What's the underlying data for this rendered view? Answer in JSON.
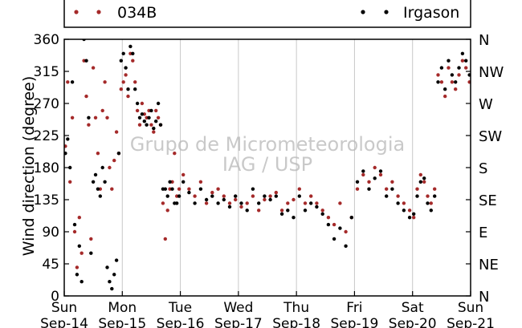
{
  "chart_data": {
    "type": "scatter",
    "ylabel": "Wind direction (degree)",
    "ylim": [
      0,
      360
    ],
    "xlim": [
      0,
      7
    ],
    "y_ticks": [
      0,
      45,
      90,
      135,
      180,
      225,
      270,
      315,
      360
    ],
    "y_tick_labels": [
      "0",
      "45",
      "90",
      "135",
      "180",
      "225",
      "270",
      "315",
      "360"
    ],
    "y2_tick_labels": [
      "N",
      "NE",
      "E",
      "SE",
      "S",
      "SW",
      "W",
      "NW",
      "N"
    ],
    "x_ticks": [
      0,
      1,
      2,
      3,
      4,
      5,
      6,
      7
    ],
    "x_tick_days": [
      "Sun",
      "Mon",
      "Tue",
      "Wed",
      "Thu",
      "Fri",
      "Sat",
      "Sun"
    ],
    "x_tick_dates": [
      "Sep-14",
      "Sep-15",
      "Sep-16",
      "Sep-17",
      "Sep-18",
      "Sep-19",
      "Sep-20",
      "Sep-21"
    ],
    "grid": "vertical",
    "legend_position": "top",
    "watermark": [
      "Grupo de Micrometeorologia",
      "IAG / USP"
    ],
    "series": [
      {
        "name": "034B",
        "color": "#a52a2a",
        "x": [
          0.02,
          0.06,
          0.1,
          0.14,
          0.18,
          0.22,
          0.26,
          0.3,
          0.34,
          0.38,
          0.42,
          0.46,
          0.5,
          0.54,
          0.58,
          0.62,
          0.66,
          0.7,
          0.74,
          0.78,
          0.82,
          0.86,
          0.9,
          0.94,
          0.98,
          1.02,
          1.06,
          1.1,
          1.14,
          1.18,
          1.22,
          1.26,
          1.3,
          1.34,
          1.38,
          1.42,
          1.46,
          1.5,
          1.54,
          1.58,
          1.62,
          1.66,
          1.7,
          1.74,
          1.78,
          1.82,
          1.86,
          1.9,
          1.94,
          1.98,
          2.05,
          2.15,
          2.25,
          2.35,
          2.45,
          2.55,
          2.65,
          2.75,
          2.85,
          2.95,
          3.05,
          3.15,
          3.25,
          3.35,
          3.45,
          3.55,
          3.65,
          3.75,
          3.85,
          3.95,
          4.05,
          4.15,
          4.25,
          4.35,
          4.45,
          4.55,
          4.65,
          4.75,
          4.85,
          4.95,
          5.05,
          5.15,
          5.25,
          5.35,
          5.45,
          5.55,
          5.65,
          5.75,
          5.85,
          5.95,
          6.02,
          6.08,
          6.14,
          6.2,
          6.26,
          6.32,
          6.38,
          6.44,
          6.5,
          6.56,
          6.62,
          6.68,
          6.74,
          6.8,
          6.86,
          6.92,
          6.98
        ],
        "y": [
          210,
          300,
          160,
          250,
          90,
          40,
          110,
          60,
          330,
          280,
          240,
          80,
          320,
          250,
          200,
          150,
          260,
          300,
          250,
          180,
          150,
          190,
          230,
          200,
          290,
          300,
          310,
          280,
          340,
          330,
          300,
          260,
          240,
          270,
          255,
          250,
          260,
          240,
          230,
          260,
          250,
          240,
          130,
          80,
          120,
          150,
          160,
          200,
          140,
          150,
          170,
          150,
          140,
          160,
          130,
          145,
          150,
          140,
          130,
          135,
          125,
          130,
          140,
          120,
          135,
          140,
          145,
          120,
          130,
          135,
          150,
          130,
          140,
          130,
          120,
          110,
          100,
          130,
          90,
          110,
          150,
          170,
          160,
          180,
          170,
          150,
          160,
          140,
          130,
          120,
          110,
          150,
          170,
          160,
          140,
          130,
          150,
          310,
          300,
          280,
          320,
          300,
          290,
          310,
          330,
          320,
          300
        ]
      },
      {
        "name": "Irgason",
        "color": "#000000",
        "x": [
          0.02,
          0.06,
          0.1,
          0.14,
          0.18,
          0.22,
          0.26,
          0.3,
          0.34,
          0.38,
          0.42,
          0.46,
          0.5,
          0.54,
          0.58,
          0.62,
          0.66,
          0.7,
          0.74,
          0.78,
          0.82,
          0.86,
          0.9,
          0.94,
          0.98,
          1.02,
          1.06,
          1.1,
          1.14,
          1.18,
          1.22,
          1.26,
          1.3,
          1.34,
          1.38,
          1.42,
          1.46,
          1.5,
          1.54,
          1.58,
          1.62,
          1.66,
          1.7,
          1.74,
          1.78,
          1.82,
          1.86,
          1.9,
          1.94,
          1.98,
          2.05,
          2.15,
          2.25,
          2.35,
          2.45,
          2.55,
          2.65,
          2.75,
          2.85,
          2.95,
          3.05,
          3.15,
          3.25,
          3.35,
          3.45,
          3.55,
          3.65,
          3.75,
          3.85,
          3.95,
          4.05,
          4.15,
          4.25,
          4.35,
          4.45,
          4.55,
          4.65,
          4.75,
          4.85,
          4.95,
          5.05,
          5.15,
          5.25,
          5.35,
          5.45,
          5.55,
          5.65,
          5.75,
          5.85,
          5.95,
          6.02,
          6.08,
          6.14,
          6.2,
          6.26,
          6.32,
          6.38,
          6.44,
          6.5,
          6.56,
          6.62,
          6.68,
          6.74,
          6.8,
          6.86,
          6.92,
          6.98
        ],
        "y": [
          200,
          220,
          180,
          300,
          100,
          30,
          70,
          20,
          360,
          330,
          250,
          60,
          160,
          170,
          150,
          140,
          180,
          160,
          40,
          20,
          10,
          30,
          50,
          200,
          330,
          340,
          320,
          290,
          350,
          340,
          290,
          270,
          250,
          255,
          245,
          240,
          250,
          260,
          235,
          245,
          270,
          240,
          150,
          150,
          140,
          160,
          150,
          130,
          130,
          140,
          160,
          145,
          130,
          150,
          135,
          140,
          130,
          135,
          125,
          140,
          130,
          120,
          150,
          130,
          140,
          135,
          140,
          115,
          120,
          110,
          140,
          120,
          130,
          125,
          115,
          100,
          80,
          95,
          70,
          110,
          160,
          175,
          150,
          165,
          175,
          140,
          150,
          130,
          120,
          110,
          115,
          140,
          160,
          165,
          130,
          120,
          140,
          300,
          320,
          290,
          330,
          310,
          300,
          320,
          340,
          330,
          310
        ]
      }
    ]
  }
}
